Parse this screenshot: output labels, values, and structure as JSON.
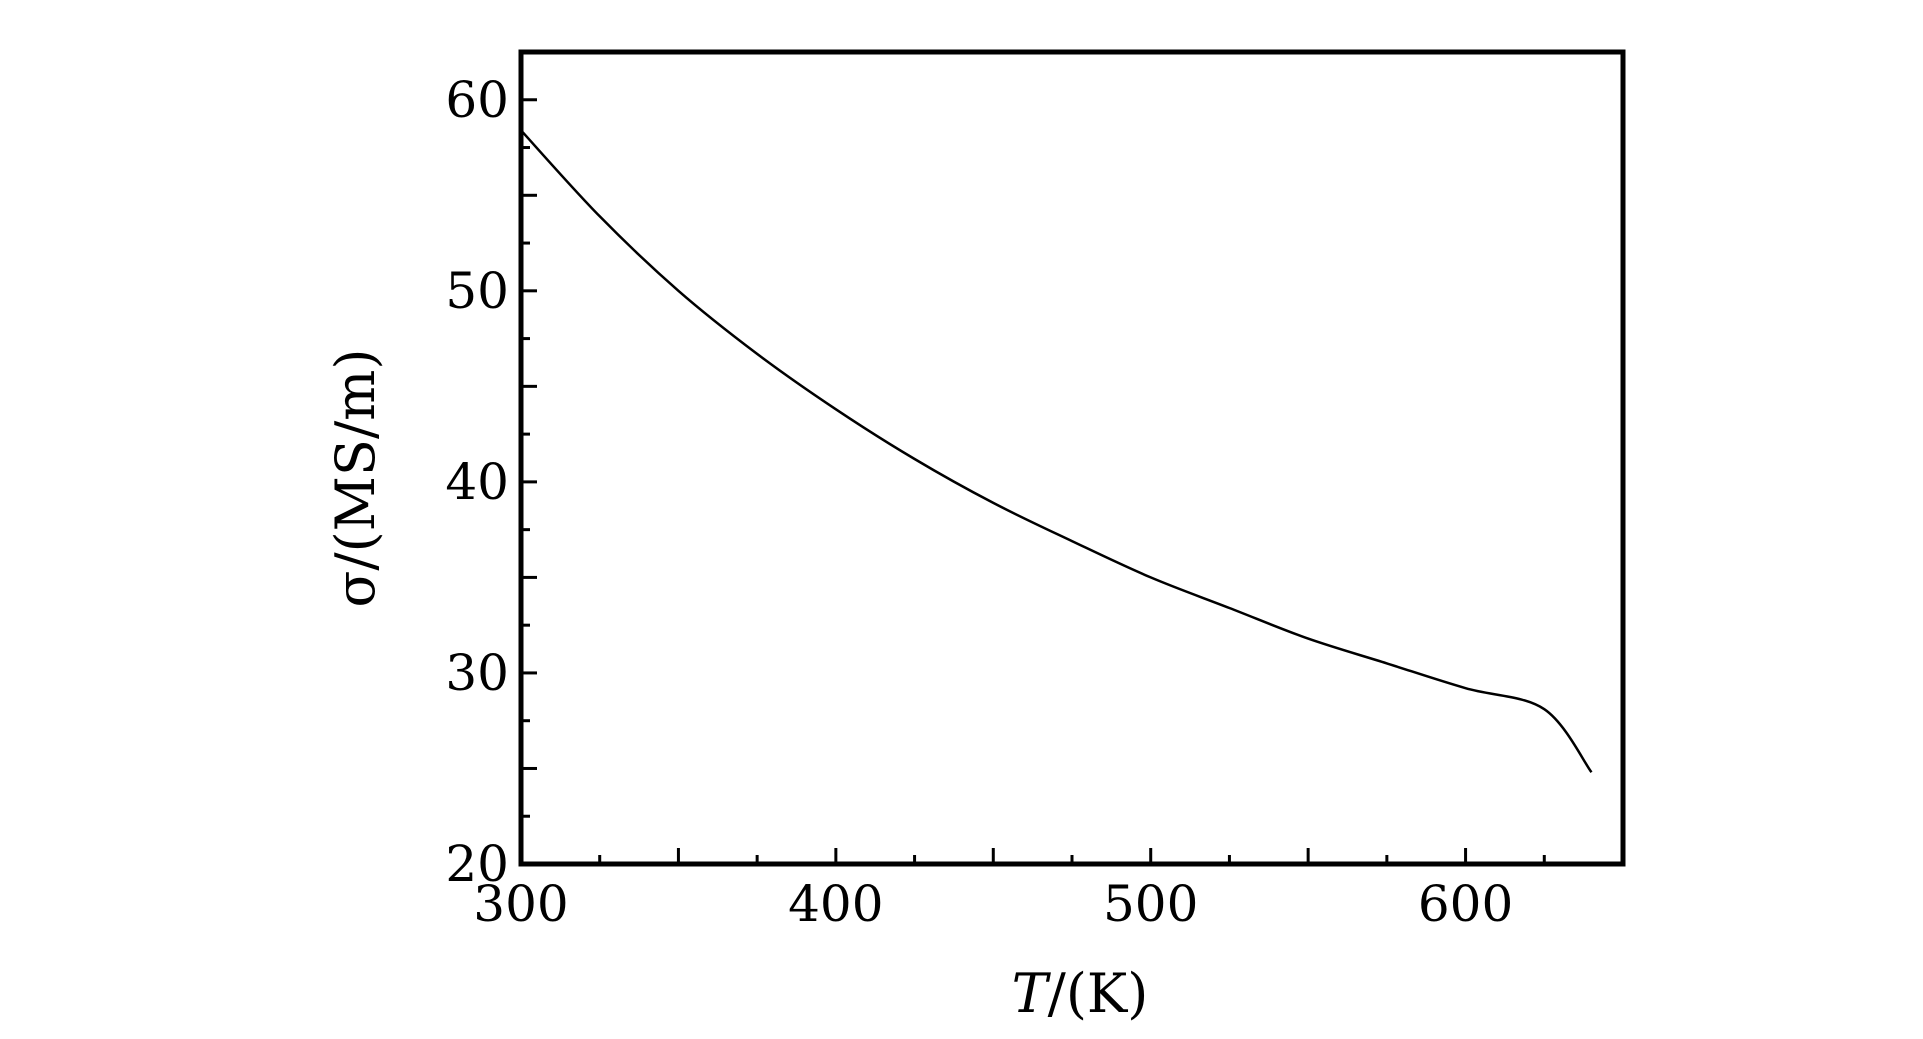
{
  "chart_data": {
    "type": "line",
    "title": "",
    "xlabel_var": "T",
    "xlabel_unit": "/(K)",
    "ylabel": "σ/(MS/m)",
    "xlim": [
      300,
      650
    ],
    "ylim": [
      20,
      62.5
    ],
    "x_ticks": [
      300,
      400,
      500,
      600
    ],
    "x_tick_labels": [
      "300",
      "400",
      "500",
      "600"
    ],
    "y_ticks": [
      20,
      30,
      40,
      50,
      60
    ],
    "y_tick_labels": [
      "20",
      "30",
      "40",
      "50",
      "60"
    ],
    "x_minor_step": 25,
    "y_minor_step": 2.5,
    "grid": false,
    "legend": "none",
    "series": [
      {
        "x": [
          300,
          325,
          350,
          375,
          400,
          425,
          450,
          475,
          500,
          525,
          550,
          575,
          600,
          625,
          640
        ],
        "y": [
          58.4,
          53.9,
          50.0,
          46.7,
          43.8,
          41.2,
          38.9,
          36.9,
          35.0,
          33.4,
          31.8,
          30.5,
          29.2,
          28.1,
          24.8
        ]
      }
    ]
  }
}
